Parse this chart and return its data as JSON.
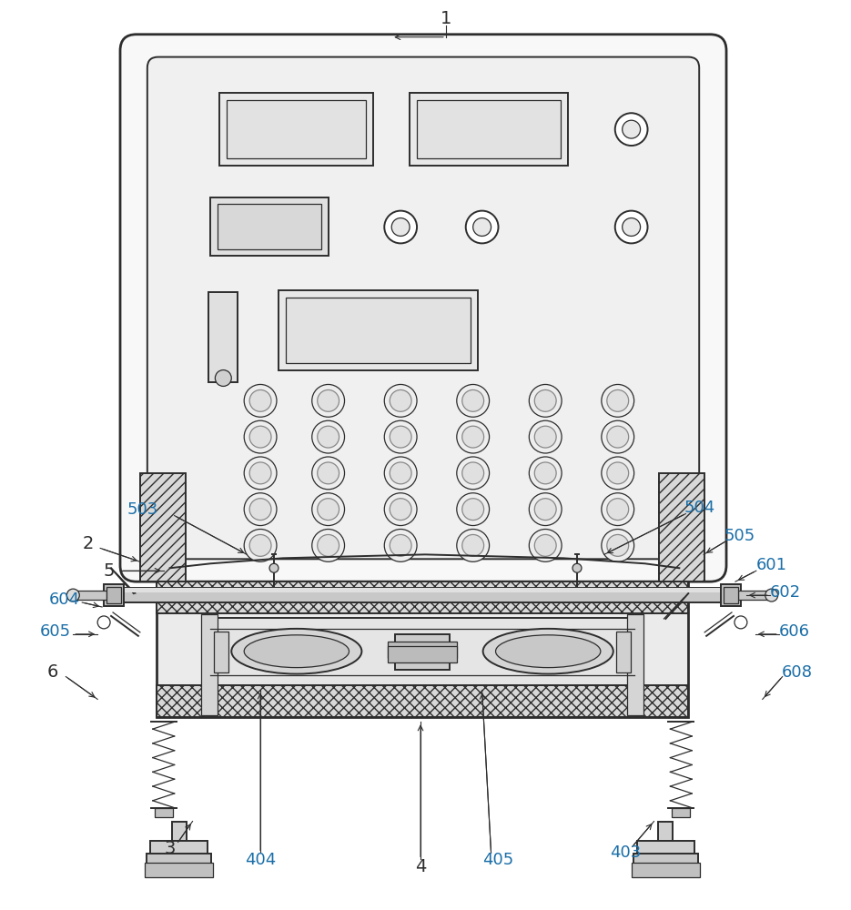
{
  "bg_color": "#ffffff",
  "line_color": "#2d2d2d",
  "label_color": "#1a6ea8",
  "label_color_black": "#2d2d2d",
  "fig_width": 9.35,
  "fig_height": 10.0,
  "dpi": 100
}
